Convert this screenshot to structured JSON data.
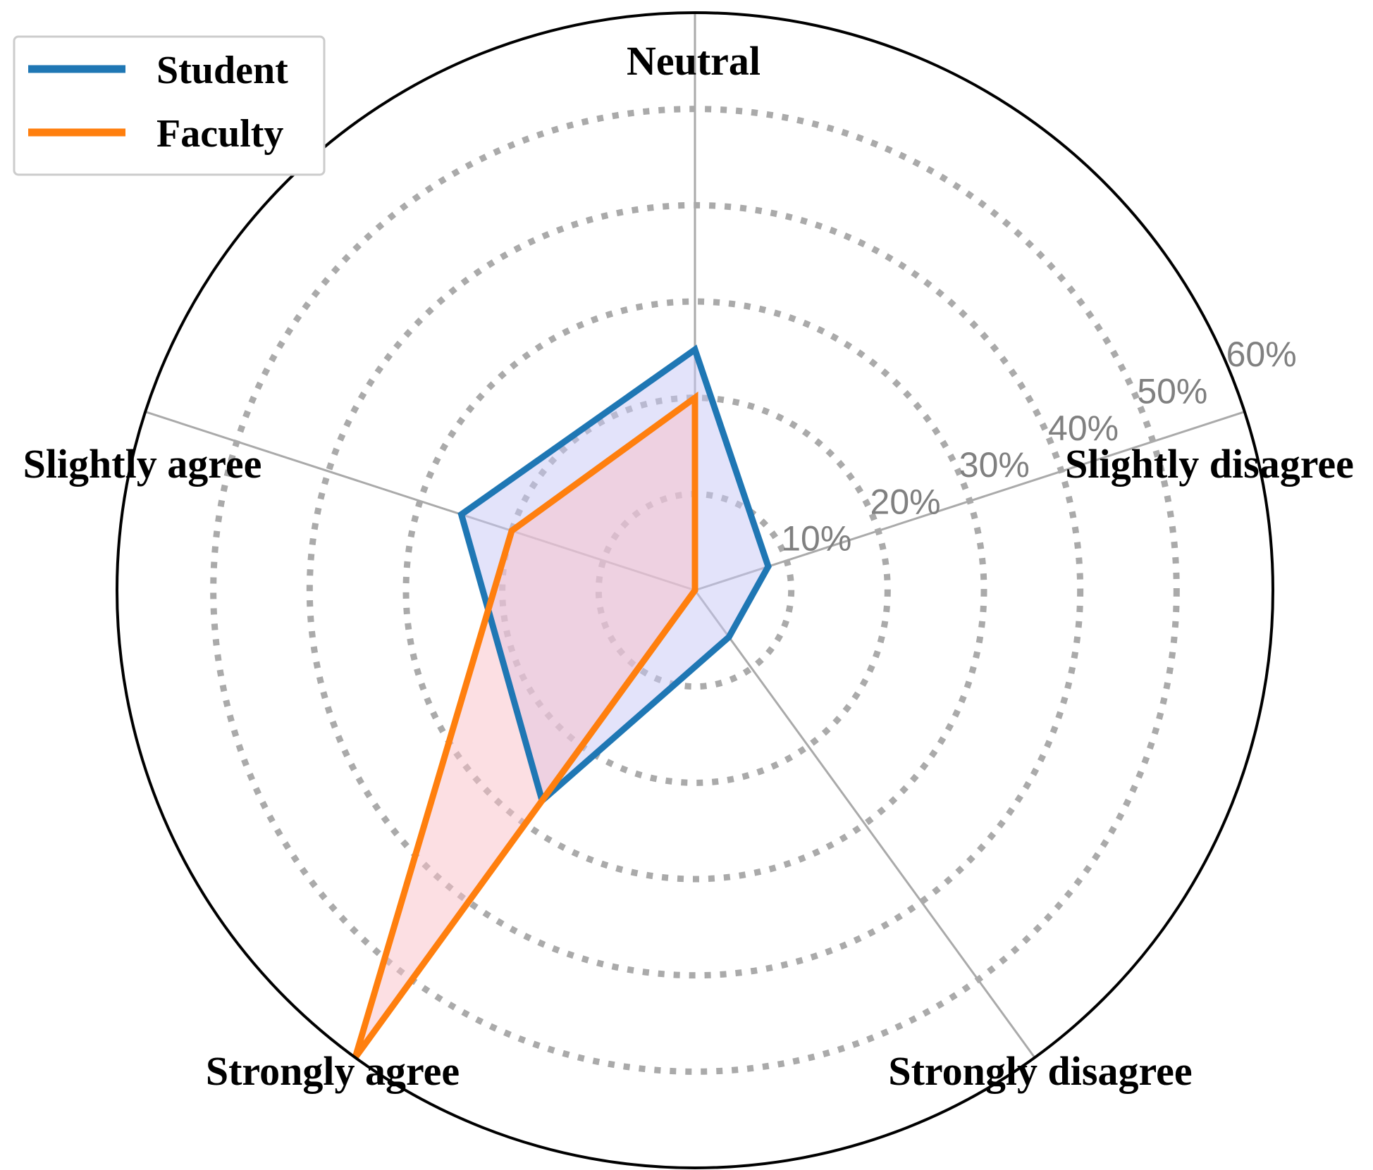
{
  "chart_data": {
    "type": "radar",
    "axes": [
      "Slightly disagree",
      "Neutral",
      "Slightly agree",
      "Strongly agree",
      "Strongly disagree"
    ],
    "rlim": [
      0,
      60
    ],
    "r_ticks": [
      10,
      20,
      30,
      40,
      50,
      60
    ],
    "r_tick_labels": [
      "10%",
      "20%",
      "30%",
      "40%",
      "50%",
      "60%"
    ],
    "grid": true,
    "legend_position": "top-left",
    "series": [
      {
        "name": "Student",
        "values": [
          8,
          25,
          25.5,
          27,
          6
        ],
        "color": "#1f77b4",
        "fill": "#c8c8f5"
      },
      {
        "name": "Faculty",
        "values": [
          0,
          20,
          20,
          60,
          0
        ],
        "color": "#ff7f0e",
        "fill": "#f9c0c8"
      }
    ]
  }
}
